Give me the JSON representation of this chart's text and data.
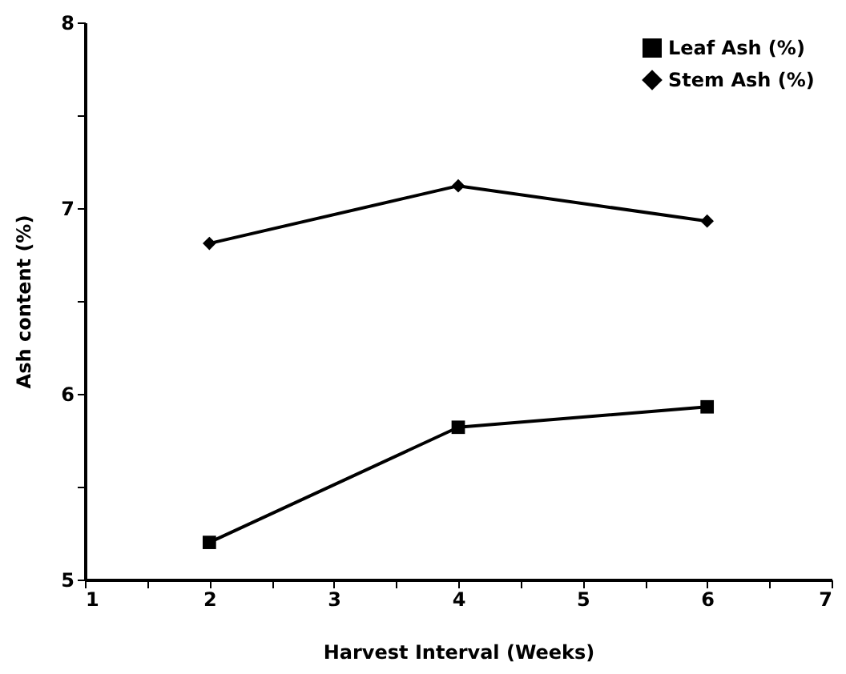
{
  "chart_data": {
    "type": "line",
    "xlabel": "Harvest  Interval  (Weeks)",
    "ylabel": "Ash  content  (%)",
    "x": [
      2,
      4,
      6
    ],
    "series": [
      {
        "name": "Leaf Ash (%)",
        "color": "#000000",
        "marker": "square",
        "values": [
          5.2,
          5.82,
          5.93
        ]
      },
      {
        "name": "Stem Ash (%)",
        "color": "#000000",
        "marker": "diamond",
        "values": [
          6.81,
          7.12,
          6.93
        ]
      }
    ],
    "xlim": [
      1,
      7
    ],
    "xticks": [
      1,
      {
        "value": 1.5,
        "label": null
      },
      2,
      {
        "value": 2.5,
        "label": null
      },
      3,
      {
        "value": 3.5,
        "label": null
      },
      4,
      {
        "value": 4.5,
        "label": null
      },
      5,
      {
        "value": 5.5,
        "label": null
      },
      6,
      {
        "value": 6.5,
        "label": null
      },
      7
    ],
    "ylim": [
      5,
      8
    ],
    "yticks": [
      5,
      {
        "value": 5.5,
        "label": null
      },
      6,
      {
        "value": 6.5,
        "label": null
      },
      7,
      {
        "value": 7.5,
        "label": null
      },
      8
    ],
    "grid": false,
    "legend": "top right",
    "line_style": "solid"
  }
}
